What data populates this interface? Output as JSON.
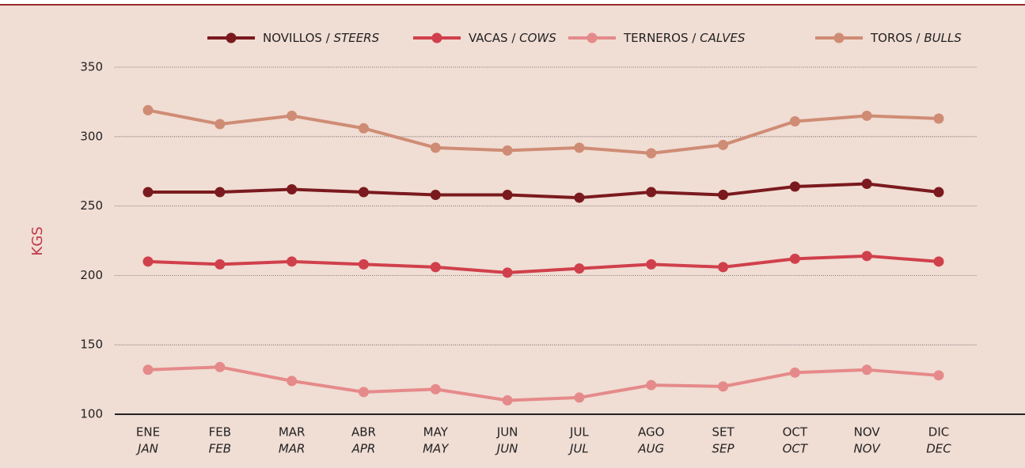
{
  "chart_data": {
    "type": "line",
    "categories": [
      "ENE",
      "FEB",
      "MAR",
      "ABR",
      "MAY",
      "JUN",
      "JUL",
      "AGO",
      "SET",
      "OCT",
      "NOV",
      "DIC"
    ],
    "categories_en": [
      "JAN",
      "FEB",
      "MAR",
      "APR",
      "MAY",
      "JUN",
      "JUL",
      "AUG",
      "SEP",
      "OCT",
      "NOV",
      "DEC"
    ],
    "ylabel": "KGS",
    "ylim": [
      100,
      350
    ],
    "yticks": [
      100,
      150,
      200,
      250,
      300,
      350
    ],
    "grid": true,
    "series": [
      {
        "name": "NOVILLOS / STEERS",
        "color": "#7a1a1e",
        "values": [
          260,
          260,
          262,
          260,
          258,
          258,
          256,
          260,
          258,
          264,
          266,
          260
        ]
      },
      {
        "name": "VACAS / COWS",
        "color": "#d0404c",
        "values": [
          210,
          208,
          210,
          208,
          206,
          202,
          205,
          208,
          206,
          212,
          214,
          210
        ]
      },
      {
        "name": "TERNEROS / CALVES",
        "color": "#e58a8a",
        "values": [
          132,
          134,
          124,
          116,
          118,
          110,
          112,
          121,
          120,
          130,
          132,
          128
        ]
      },
      {
        "name": "TOROS / BULLS",
        "color": "#cf8c74",
        "values": [
          319,
          309,
          315,
          306,
          292,
          290,
          292,
          288,
          294,
          311,
          315,
          313
        ]
      }
    ]
  }
}
